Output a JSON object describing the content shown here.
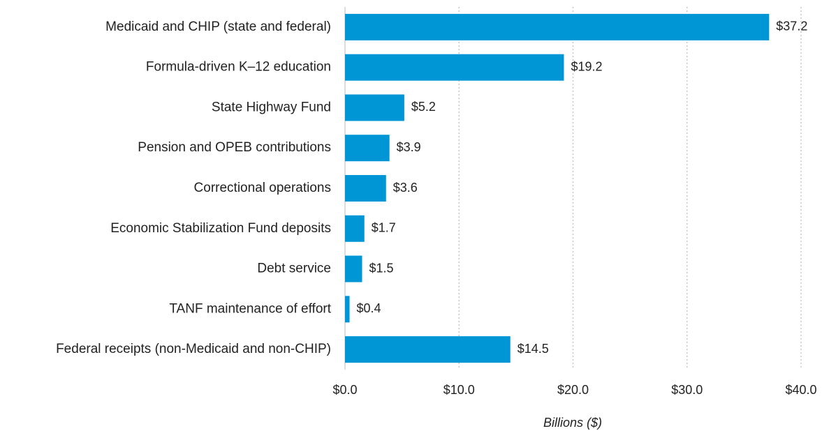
{
  "chart_data": {
    "type": "hbar",
    "categories": [
      "Medicaid and CHIP (state and federal)",
      "Formula-driven K–12 education",
      "State Highway Fund",
      "Pension and OPEB contributions",
      "Correctional operations",
      "Economic Stabilization Fund deposits",
      "Debt service",
      "TANF maintenance of effort",
      "Federal receipts (non-Medicaid and non-CHIP)"
    ],
    "values": [
      37.2,
      19.2,
      5.2,
      3.9,
      3.6,
      1.7,
      1.5,
      0.4,
      14.5
    ],
    "value_labels": [
      "$37.2",
      "$19.2",
      "$5.2",
      "$3.9",
      "$3.6",
      "$1.7",
      "$1.5",
      "$0.4",
      "$14.5"
    ],
    "color": "#0096d6",
    "xlim": [
      0,
      40
    ],
    "xticks": [
      {
        "value": 0,
        "label": "$0.0"
      },
      {
        "value": 10,
        "label": "$10.0"
      },
      {
        "value": 20,
        "label": "$20.0"
      },
      {
        "value": 30,
        "label": "$30.0"
      },
      {
        "value": 40,
        "label": "$40.0"
      }
    ],
    "xlabel": "Billions ($)",
    "grid": true
  }
}
